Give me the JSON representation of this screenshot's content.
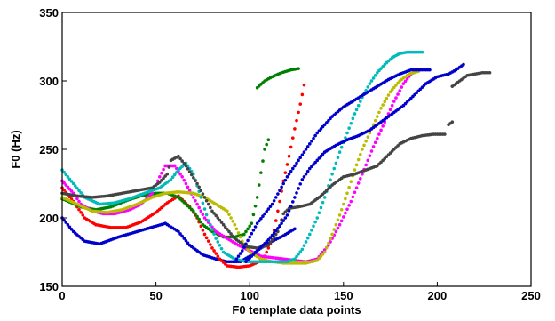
{
  "chart_data": {
    "type": "scatter",
    "title": "",
    "xlabel": "F0 template data points",
    "ylabel": "F0 (Hz)",
    "xlim": [
      0,
      250
    ],
    "ylim": [
      150,
      350
    ],
    "xticks": [
      0,
      50,
      100,
      150,
      200,
      250
    ],
    "yticks": [
      150,
      200,
      250,
      300,
      350
    ],
    "grid": false,
    "legend": "none",
    "series": [
      {
        "color": "#0000cc",
        "points": [
          [
            0,
            200
          ],
          [
            6,
            190
          ],
          [
            12,
            183
          ],
          [
            20,
            181
          ],
          [
            30,
            186
          ],
          [
            40,
            190
          ],
          [
            50,
            194
          ],
          [
            55,
            196
          ],
          [
            62,
            190
          ],
          [
            68,
            180
          ],
          [
            75,
            173
          ],
          [
            82,
            170
          ],
          [
            88,
            168
          ],
          [
            95,
            168
          ],
          [
            100,
            172
          ],
          [
            106,
            178
          ],
          [
            112,
            183
          ],
          [
            118,
            187
          ],
          [
            124,
            192
          ]
        ]
      },
      {
        "color": "#ff0000",
        "points": [
          [
            0,
            222
          ],
          [
            6,
            212
          ],
          [
            12,
            200
          ],
          [
            18,
            195
          ],
          [
            26,
            193
          ],
          [
            34,
            193
          ],
          [
            42,
            197
          ],
          [
            50,
            204
          ],
          [
            56,
            211
          ],
          [
            62,
            216
          ],
          [
            68,
            208
          ],
          [
            72,
            200
          ],
          [
            76,
            188
          ],
          [
            80,
            178
          ],
          [
            84,
            170
          ],
          [
            88,
            165
          ],
          [
            94,
            164
          ],
          [
            100,
            165
          ],
          [
            105,
            168
          ],
          [
            108,
            172
          ],
          [
            112,
            184
          ],
          [
            114,
            198
          ],
          [
            116,
            212
          ],
          [
            118,
            227
          ],
          [
            121,
            245
          ],
          [
            124,
            265
          ],
          [
            127,
            283
          ],
          [
            129,
            297
          ]
        ]
      },
      {
        "color": "#008000",
        "points": [
          [
            0,
            214
          ],
          [
            5,
            211
          ],
          [
            10,
            208
          ],
          [
            18,
            206
          ],
          [
            26,
            208
          ],
          [
            35,
            213
          ],
          [
            42,
            216
          ],
          [
            50,
            218
          ],
          [
            56,
            218
          ],
          [
            62,
            215
          ],
          [
            70,
            205
          ],
          [
            75,
            195
          ],
          [
            80,
            190
          ],
          [
            86,
            186
          ],
          [
            92,
            186
          ],
          [
            97,
            188
          ],
          [
            101,
            196
          ],
          [
            104,
            215
          ],
          [
            106,
            233
          ],
          [
            108,
            250
          ],
          [
            110,
            257
          ]
        ]
      },
      {
        "color": "#008000",
        "points": [
          [
            104,
            295
          ],
          [
            108,
            300
          ],
          [
            112,
            303
          ],
          [
            117,
            306
          ],
          [
            122,
            308
          ],
          [
            126,
            309
          ]
        ]
      },
      {
        "color": "#ff00ff",
        "points": [
          [
            0,
            227
          ],
          [
            6,
            218
          ],
          [
            10,
            210
          ],
          [
            16,
            205
          ],
          [
            22,
            203
          ],
          [
            28,
            203
          ],
          [
            36,
            206
          ],
          [
            42,
            210
          ],
          [
            48,
            218
          ],
          [
            52,
            230
          ],
          [
            55,
            238
          ],
          [
            60,
            238
          ],
          [
            64,
            230
          ],
          [
            70,
            215
          ],
          [
            76,
            200
          ],
          [
            82,
            190
          ],
          [
            88,
            185
          ],
          [
            94,
            180
          ],
          [
            100,
            176
          ],
          [
            106,
            172
          ],
          [
            112,
            171
          ],
          [
            118,
            170
          ],
          [
            124,
            169
          ],
          [
            130,
            168
          ],
          [
            136,
            170
          ],
          [
            142,
            180
          ],
          [
            148,
            195
          ],
          [
            154,
            212
          ],
          [
            160,
            232
          ],
          [
            166,
            252
          ],
          [
            172,
            270
          ],
          [
            177,
            285
          ],
          [
            182,
            298
          ],
          [
            186,
            305
          ],
          [
            190,
            308
          ]
        ]
      },
      {
        "color": "#bbbb00",
        "points": [
          [
            0,
            215
          ],
          [
            8,
            210
          ],
          [
            16,
            205
          ],
          [
            24,
            204
          ],
          [
            32,
            206
          ],
          [
            40,
            210
          ],
          [
            48,
            215
          ],
          [
            55,
            218
          ],
          [
            62,
            219
          ],
          [
            70,
            218
          ],
          [
            76,
            215
          ],
          [
            82,
            210
          ],
          [
            88,
            205
          ],
          [
            92,
            195
          ],
          [
            96,
            183
          ],
          [
            100,
            175
          ],
          [
            106,
            170
          ],
          [
            112,
            168
          ],
          [
            118,
            167
          ],
          [
            124,
            167
          ],
          [
            130,
            167
          ],
          [
            136,
            169
          ],
          [
            140,
            175
          ],
          [
            144,
            188
          ],
          [
            148,
            202
          ],
          [
            152,
            218
          ],
          [
            156,
            235
          ],
          [
            160,
            250
          ],
          [
            165,
            265
          ],
          [
            170,
            280
          ],
          [
            175,
            292
          ],
          [
            180,
            300
          ],
          [
            185,
            305
          ],
          [
            190,
            307
          ]
        ]
      },
      {
        "color": "#00bbbb",
        "points": [
          [
            0,
            235
          ],
          [
            6,
            225
          ],
          [
            12,
            215
          ],
          [
            20,
            210
          ],
          [
            28,
            211
          ],
          [
            36,
            214
          ],
          [
            44,
            218
          ],
          [
            52,
            222
          ],
          [
            58,
            228
          ],
          [
            62,
            235
          ],
          [
            66,
            240
          ],
          [
            70,
            232
          ],
          [
            74,
            215
          ],
          [
            78,
            198
          ],
          [
            82,
            185
          ],
          [
            86,
            175
          ],
          [
            92,
            170
          ],
          [
            98,
            168
          ],
          [
            104,
            168
          ],
          [
            110,
            168
          ],
          [
            116,
            168
          ],
          [
            120,
            168
          ],
          [
            124,
            170
          ],
          [
            128,
            177
          ],
          [
            132,
            188
          ],
          [
            136,
            200
          ],
          [
            140,
            215
          ],
          [
            144,
            232
          ],
          [
            148,
            248
          ],
          [
            152,
            262
          ],
          [
            156,
            276
          ],
          [
            160,
            288
          ],
          [
            164,
            298
          ],
          [
            168,
            306
          ],
          [
            172,
            312
          ],
          [
            176,
            317
          ],
          [
            180,
            320
          ],
          [
            184,
            321
          ],
          [
            188,
            321
          ],
          [
            192,
            321
          ]
        ]
      },
      {
        "color": "#444444",
        "points": [
          [
            0,
            218
          ],
          [
            8,
            216
          ],
          [
            16,
            215
          ],
          [
            24,
            216
          ],
          [
            32,
            218
          ],
          [
            40,
            220
          ],
          [
            48,
            222
          ],
          [
            52,
            226
          ],
          [
            56,
            232
          ],
          [
            58,
            242
          ],
          [
            62,
            245
          ],
          [
            66,
            238
          ],
          [
            72,
            225
          ],
          [
            76,
            215
          ],
          [
            80,
            205
          ],
          [
            86,
            195
          ],
          [
            92,
            185
          ],
          [
            98,
            179
          ],
          [
            104,
            178
          ],
          [
            110,
            180
          ],
          [
            115,
            190
          ],
          [
            118,
            203
          ],
          [
            121,
            207
          ],
          [
            126,
            208
          ],
          [
            132,
            210
          ],
          [
            138,
            216
          ],
          [
            144,
            224
          ],
          [
            150,
            230
          ],
          [
            156,
            232
          ],
          [
            162,
            235
          ],
          [
            168,
            238
          ],
          [
            174,
            246
          ],
          [
            180,
            254
          ],
          [
            186,
            258
          ],
          [
            192,
            260
          ],
          [
            198,
            261
          ],
          [
            204,
            261
          ]
        ]
      },
      {
        "color": "#444444",
        "points": [
          [
            206,
            268
          ],
          [
            208,
            270
          ]
        ]
      },
      {
        "color": "#444444",
        "points": [
          [
            208,
            296
          ],
          [
            212,
            300
          ],
          [
            216,
            304
          ],
          [
            220,
            305
          ],
          [
            224,
            306
          ],
          [
            228,
            306
          ]
        ]
      },
      {
        "color": "#0000cc",
        "points": [
          [
            92,
            168
          ],
          [
            96,
            176
          ],
          [
            100,
            186
          ],
          [
            104,
            196
          ],
          [
            108,
            203
          ],
          [
            112,
            210
          ],
          [
            116,
            220
          ],
          [
            120,
            230
          ],
          [
            124,
            238
          ],
          [
            128,
            246
          ],
          [
            132,
            254
          ],
          [
            136,
            262
          ],
          [
            140,
            268
          ],
          [
            144,
            274
          ],
          [
            150,
            281
          ],
          [
            156,
            286
          ],
          [
            162,
            291
          ],
          [
            168,
            296
          ],
          [
            174,
            301
          ],
          [
            180,
            305
          ],
          [
            186,
            308
          ],
          [
            192,
            308
          ],
          [
            196,
            308
          ]
        ]
      },
      {
        "color": "#0000cc",
        "points": [
          [
            98,
            168
          ],
          [
            104,
            176
          ],
          [
            110,
            184
          ],
          [
            116,
            194
          ],
          [
            120,
            202
          ],
          [
            124,
            215
          ],
          [
            128,
            228
          ],
          [
            132,
            236
          ],
          [
            136,
            242
          ],
          [
            140,
            248
          ],
          [
            146,
            253
          ],
          [
            152,
            257
          ],
          [
            158,
            260
          ],
          [
            164,
            264
          ],
          [
            170,
            270
          ],
          [
            176,
            276
          ],
          [
            182,
            282
          ],
          [
            188,
            290
          ],
          [
            194,
            298
          ],
          [
            200,
            303
          ],
          [
            206,
            305
          ],
          [
            210,
            308
          ],
          [
            214,
            312
          ]
        ]
      }
    ]
  }
}
